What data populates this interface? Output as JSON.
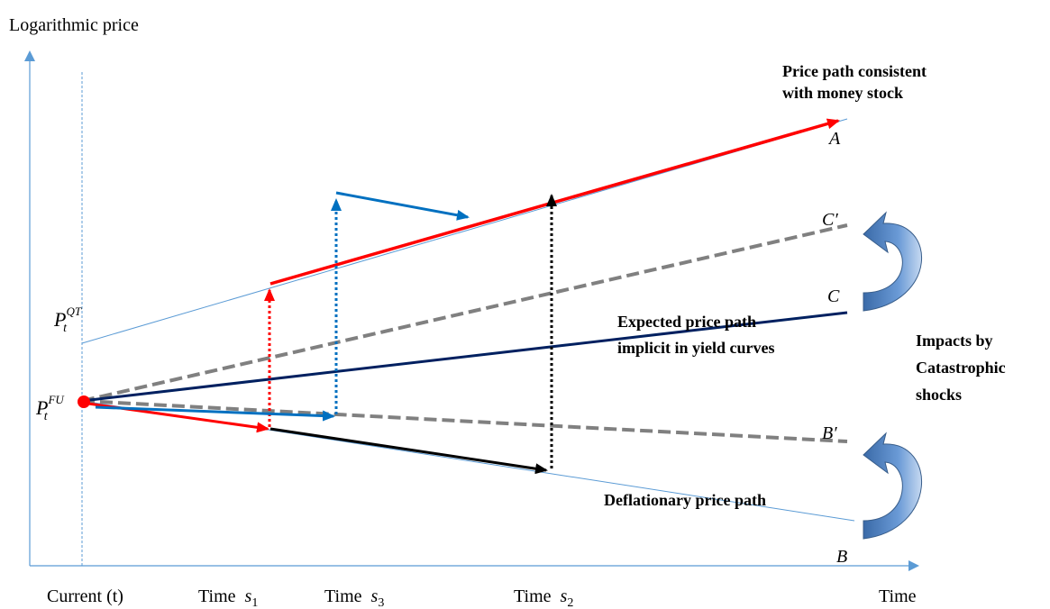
{
  "axes": {
    "y_label": "Logarithmic price",
    "x_label": "Time"
  },
  "x_ticks": {
    "current": "Current (t)",
    "time_word": "Time",
    "s1_sub": "1",
    "s3_sub": "3",
    "s2_sub": "2",
    "s_var": "s"
  },
  "y_ticks": {
    "p_var": "P",
    "p_sub": "t",
    "qt_sup": "QT",
    "fu_sup": "FU"
  },
  "annotations": {
    "money_path_line1": "Price path consistent",
    "money_path_line2": "with money stock",
    "expected_line1": "Expected price path",
    "expected_line2": "implicit in yield curves",
    "deflation": "Deflationary price path",
    "impacts_line1": "Impacts by",
    "impacts_line2": "Catastrophic",
    "impacts_line3": "shocks"
  },
  "line_labels": {
    "A": "A",
    "C_prime": "C′",
    "C": "C",
    "B_prime": "B′",
    "B": "B"
  },
  "colors": {
    "axis": "#5b9bd5",
    "red": "#ff0000",
    "blue": "#0070c0",
    "navy": "#002060",
    "gray": "#808080",
    "black": "#000000",
    "curve_arrow": "#4f81bd"
  }
}
